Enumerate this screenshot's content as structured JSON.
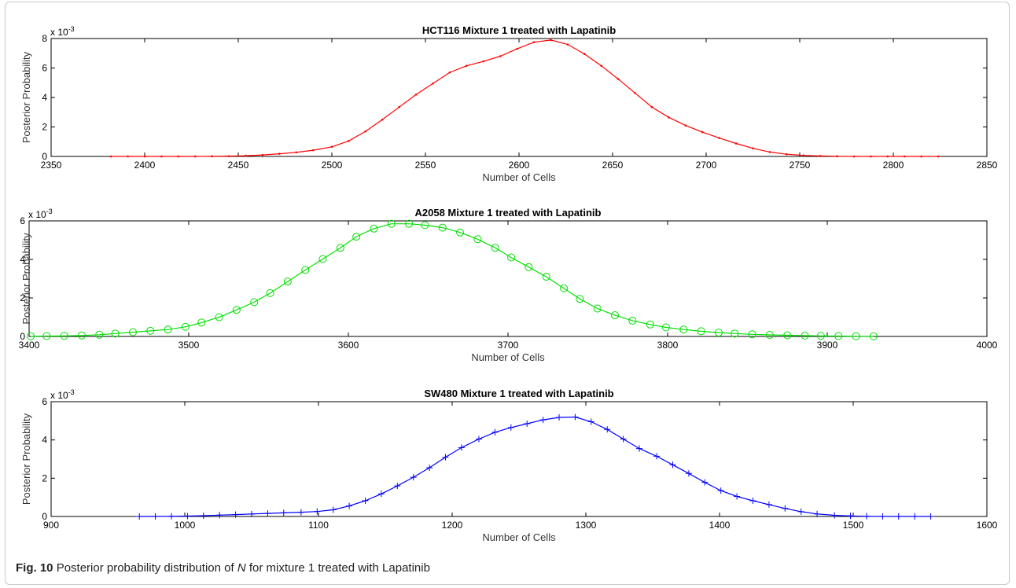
{
  "caption": {
    "label": "Fig. 10",
    "text_before": "Posterior probability distribution of",
    "italic": "N",
    "text_after": "for mixture 1 treated with Lapatinib"
  },
  "chart_data": [
    {
      "type": "line",
      "title": "HCT116 Mixture 1 treated with Lapatinib",
      "xlabel": "Number of Cells",
      "ylabel": "Posterior Probability",
      "exponent_label": "x 10",
      "exponent_power": "-3",
      "xlim": [
        2350,
        2850
      ],
      "ylim": [
        0,
        8
      ],
      "xticks": [
        "2350",
        "2400",
        "2450",
        "2500",
        "2550",
        "2600",
        "2650",
        "2700",
        "2750",
        "2800",
        "2850"
      ],
      "yticks": [
        "0",
        "2",
        "4",
        "6",
        "8"
      ],
      "grid": false,
      "series": [
        {
          "color": "#ff0000",
          "marker": "point",
          "x": [
            2382,
            2391,
            2400,
            2409,
            2418,
            2427,
            2436,
            2445,
            2454,
            2463,
            2472,
            2481,
            2490,
            2500,
            2509,
            2518,
            2527,
            2536,
            2545,
            2554,
            2563,
            2572,
            2581,
            2590,
            2599,
            2608,
            2617,
            2626,
            2635,
            2644,
            2653,
            2662,
            2671,
            2680,
            2689,
            2698,
            2707,
            2716,
            2725,
            2734,
            2743,
            2752,
            2761,
            2770,
            2779,
            2788,
            2797,
            2806,
            2815,
            2824
          ],
          "y": [
            0,
            0,
            0,
            0,
            0,
            0,
            0.01,
            0.02,
            0.05,
            0.1,
            0.18,
            0.28,
            0.42,
            0.65,
            1.05,
            1.7,
            2.5,
            3.35,
            4.2,
            4.95,
            5.7,
            6.15,
            6.45,
            6.8,
            7.3,
            7.75,
            7.9,
            7.6,
            6.95,
            6.15,
            5.25,
            4.3,
            3.35,
            2.65,
            2.1,
            1.65,
            1.25,
            0.88,
            0.55,
            0.3,
            0.15,
            0.07,
            0.03,
            0.01,
            0,
            0,
            0,
            0,
            0,
            0
          ]
        }
      ]
    },
    {
      "type": "line",
      "title": "A2058 Mixture 1 treated with Lapatinib",
      "xlabel": "Number of Cells",
      "ylabel": "Posterior Probability",
      "exponent_label": "x 10",
      "exponent_power": "-3",
      "xlim": [
        3400,
        4000
      ],
      "ylim": [
        0,
        6
      ],
      "xticks": [
        "3400",
        "3500",
        "3600",
        "3700",
        "3800",
        "3900",
        "4000"
      ],
      "yticks": [
        "0",
        "2",
        "4",
        "6"
      ],
      "grid": false,
      "series": [
        {
          "color": "#00e000",
          "marker": "circle",
          "x": [
            3401,
            3411,
            3422,
            3433,
            3444,
            3454,
            3465,
            3476,
            3487,
            3498,
            3508,
            3519,
            3530,
            3541,
            3551,
            3562,
            3573,
            3584,
            3595,
            3605,
            3616,
            3627,
            3638,
            3648,
            3659,
            3670,
            3681,
            3692,
            3702,
            3713,
            3724,
            3735,
            3745,
            3756,
            3767,
            3778,
            3789,
            3799,
            3810,
            3821,
            3832,
            3842,
            3853,
            3864,
            3875,
            3886,
            3896,
            3907,
            3918,
            3929
          ],
          "y": [
            0.01,
            0.02,
            0.03,
            0.05,
            0.09,
            0.15,
            0.22,
            0.29,
            0.36,
            0.5,
            0.72,
            1.0,
            1.38,
            1.78,
            2.25,
            2.85,
            3.45,
            4.02,
            4.6,
            5.18,
            5.6,
            5.85,
            5.85,
            5.78,
            5.65,
            5.4,
            5.05,
            4.6,
            4.1,
            3.6,
            3.1,
            2.5,
            1.95,
            1.45,
            1.1,
            0.82,
            0.62,
            0.47,
            0.36,
            0.27,
            0.2,
            0.15,
            0.11,
            0.08,
            0.06,
            0.04,
            0.03,
            0.02,
            0.01,
            0.01
          ]
        }
      ]
    },
    {
      "type": "line",
      "title": "SW480 Mixture 1 treated with Lapatinib",
      "xlabel": "Number of Cells",
      "ylabel": "Posterior Probability",
      "exponent_label": "x 10",
      "exponent_power": "-3",
      "xlim": [
        900,
        1600
      ],
      "ylim": [
        0,
        6
      ],
      "xticks": [
        "900",
        "1000",
        "1100",
        "1200",
        "1300",
        "1400",
        "1500",
        "1600"
      ],
      "yticks": [
        "0",
        "2",
        "4",
        "6"
      ],
      "grid": false,
      "series": [
        {
          "color": "#0000ff",
          "marker": "plus",
          "x": [
            966,
            978,
            990,
            1002,
            1014,
            1026,
            1038,
            1050,
            1062,
            1074,
            1087,
            1099,
            1111,
            1123,
            1135,
            1147,
            1159,
            1171,
            1183,
            1195,
            1207,
            1220,
            1232,
            1244,
            1256,
            1268,
            1280,
            1292,
            1304,
            1316,
            1328,
            1340,
            1353,
            1365,
            1377,
            1389,
            1401,
            1413,
            1425,
            1437,
            1449,
            1461,
            1473,
            1486,
            1498,
            1510,
            1522,
            1534,
            1546,
            1558
          ],
          "y": [
            0,
            0,
            0.01,
            0.02,
            0.04,
            0.07,
            0.1,
            0.13,
            0.16,
            0.19,
            0.22,
            0.26,
            0.35,
            0.55,
            0.82,
            1.18,
            1.6,
            2.05,
            2.55,
            3.1,
            3.6,
            4.05,
            4.4,
            4.65,
            4.85,
            5.05,
            5.18,
            5.2,
            4.95,
            4.55,
            4.05,
            3.55,
            3.15,
            2.7,
            2.25,
            1.78,
            1.35,
            1.05,
            0.82,
            0.62,
            0.42,
            0.25,
            0.13,
            0.06,
            0.03,
            0.01,
            0,
            0,
            0,
            0
          ]
        }
      ]
    }
  ]
}
